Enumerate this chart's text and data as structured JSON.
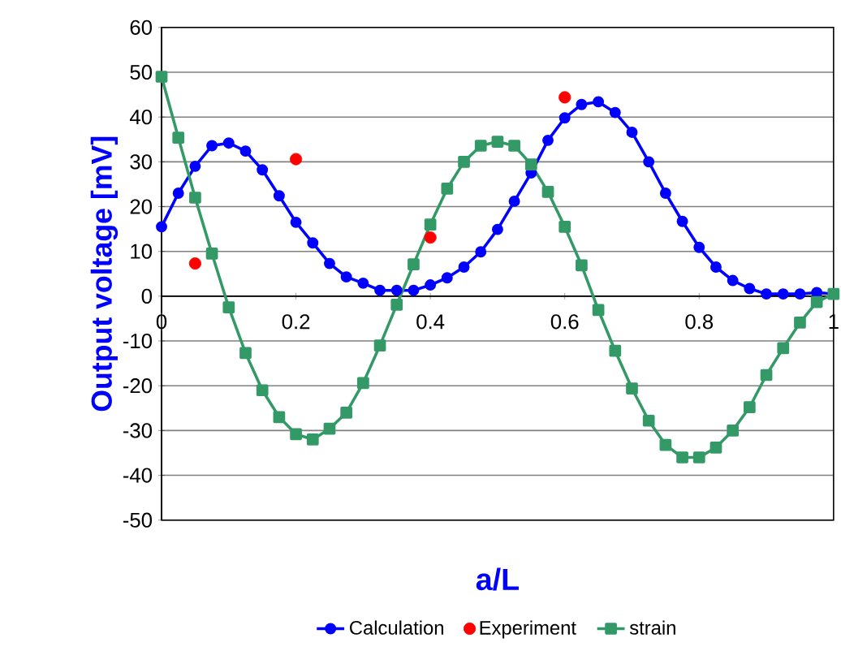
{
  "chart_data": {
    "type": "line",
    "xlabel": "a/L",
    "ylabel": "Output voltage [mV]",
    "xlim": [
      0,
      1
    ],
    "xticks": [
      0,
      0.2,
      0.4,
      0.6,
      0.8,
      1
    ],
    "ylim": [
      -50,
      60
    ],
    "yticks": [
      -50,
      -40,
      -30,
      -20,
      -10,
      0,
      10,
      20,
      30,
      40,
      50,
      60
    ],
    "grid": "y",
    "legend": "bottom",
    "series": [
      {
        "name": "Calculation",
        "marker": "circle",
        "color": "#0000ff",
        "x": [
          0,
          0.025,
          0.05,
          0.075,
          0.1,
          0.125,
          0.15,
          0.175,
          0.2,
          0.225,
          0.25,
          0.275,
          0.3,
          0.325,
          0.35,
          0.375,
          0.4,
          0.425,
          0.45,
          0.475,
          0.5,
          0.525,
          0.55,
          0.575,
          0.6,
          0.625,
          0.65,
          0.675,
          0.7,
          0.725,
          0.75,
          0.775,
          0.8,
          0.825,
          0.85,
          0.875,
          0.9,
          0.925,
          0.95,
          0.975,
          1
        ],
        "values": [
          15.5,
          23,
          29,
          33.6,
          34.2,
          32.4,
          28.2,
          22.4,
          16.5,
          11.9,
          7.3,
          4.3,
          2.9,
          1.3,
          1.3,
          1.3,
          2.5,
          4.1,
          6.5,
          9.9,
          14.9,
          21.2,
          27.5,
          34.8,
          39.8,
          42.8,
          43.4,
          41,
          36.6,
          30,
          23,
          16.7,
          10.9,
          6.5,
          3.5,
          1.7,
          0.5,
          0.5,
          0.5,
          0.8,
          0.5
        ]
      },
      {
        "name": "Experiment",
        "type": "scatter",
        "marker": "circle",
        "color": "#ff0000",
        "x": [
          0.05,
          0.2,
          0.4,
          0.6
        ],
        "values": [
          7.3,
          30.6,
          13.1,
          44.4
        ]
      },
      {
        "name": "strain",
        "marker": "square",
        "color": "#339966",
        "x": [
          0,
          0.025,
          0.05,
          0.075,
          0.1,
          0.125,
          0.15,
          0.175,
          0.2,
          0.225,
          0.25,
          0.275,
          0.3,
          0.325,
          0.35,
          0.375,
          0.4,
          0.425,
          0.45,
          0.475,
          0.5,
          0.525,
          0.55,
          0.575,
          0.6,
          0.625,
          0.65,
          0.675,
          0.7,
          0.725,
          0.75,
          0.775,
          0.8,
          0.825,
          0.85,
          0.875,
          0.9,
          0.925,
          0.95,
          0.975,
          1
        ],
        "values": [
          49,
          35.4,
          22,
          9.5,
          -2.5,
          -12.7,
          -21,
          -27,
          -30.8,
          -32,
          -29.6,
          -26,
          -19.4,
          -11,
          -1.9,
          7.1,
          16,
          24,
          30,
          33.6,
          34.5,
          33.6,
          29.4,
          23.3,
          15.5,
          6.9,
          -3.1,
          -12.2,
          -20.6,
          -27.8,
          -33.2,
          -36,
          -36,
          -33.8,
          -30,
          -24.8,
          -17.6,
          -11.6,
          -5.9,
          -1.3,
          0.5
        ]
      }
    ]
  }
}
